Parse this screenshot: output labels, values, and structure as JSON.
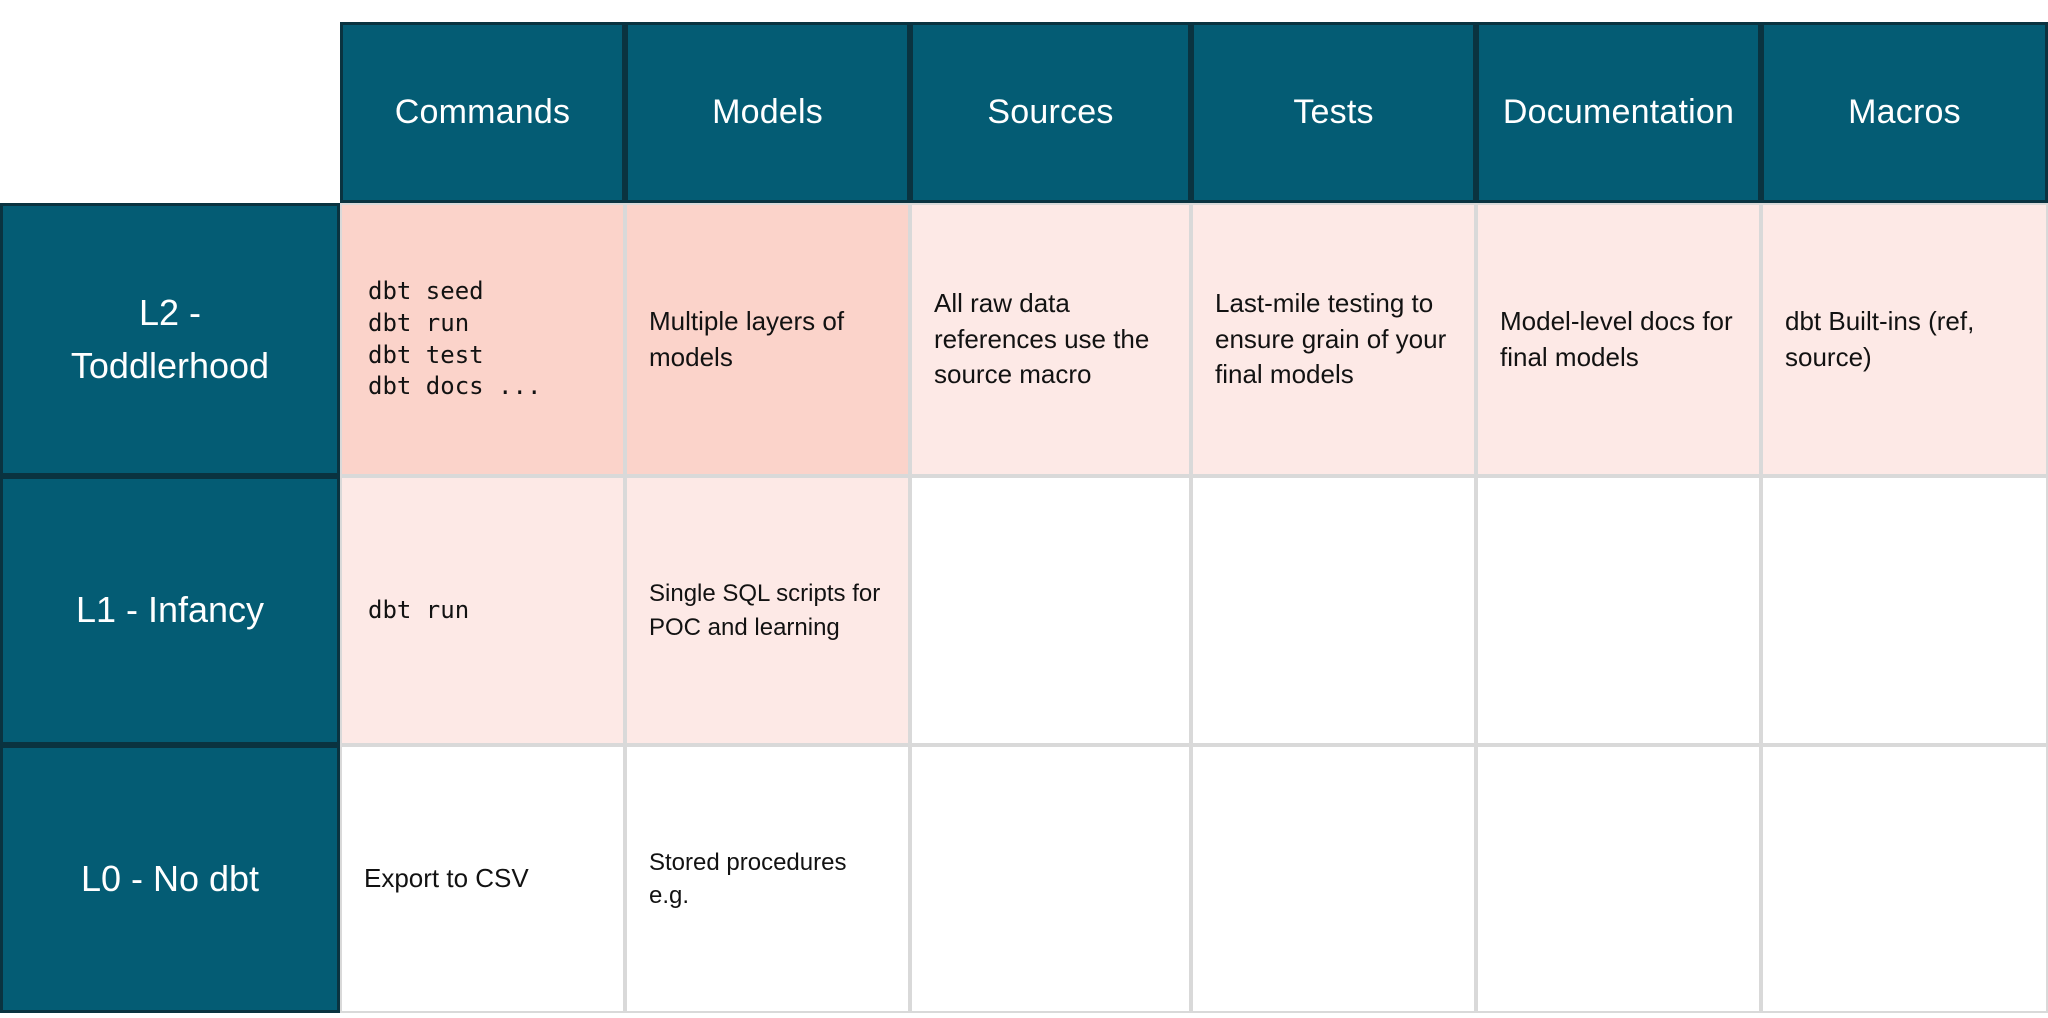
{
  "table": {
    "title": "dbt maturity levels table",
    "columns": [
      "Commands",
      "Models",
      "Sources",
      "Tests",
      "Documentation",
      "Macros"
    ],
    "rows": [
      {
        "label": "L2 - Toddlerhood",
        "cells": [
          {
            "lines": [
              "dbt seed",
              "dbt run",
              "dbt test",
              "dbt docs ..."
            ],
            "style": "mono",
            "bg": "dark-pink"
          },
          {
            "text": "Multiple layers of models",
            "bg": "dark-pink"
          },
          {
            "text": "All raw data references use the source macro",
            "bg": "light-pink"
          },
          {
            "text": "Last-mile testing to ensure grain of your final models",
            "bg": "light-pink"
          },
          {
            "text": "Model-level docs for final models",
            "bg": "light-pink"
          },
          {
            "text": "dbt Built-ins (ref, source)",
            "bg": "light-pink"
          }
        ]
      },
      {
        "label": "L1 - Infancy",
        "cells": [
          {
            "text": "dbt run",
            "style": "mono",
            "bg": "light-pink"
          },
          {
            "text": "Single SQL scripts for POC and learning",
            "bg": "light-pink"
          },
          {
            "text": "",
            "bg": "white"
          },
          {
            "text": "",
            "bg": "white"
          },
          {
            "text": "",
            "bg": "white"
          },
          {
            "text": "",
            "bg": "white"
          }
        ]
      },
      {
        "label": "L0 - No dbt",
        "cells": [
          {
            "text": "Export to CSV",
            "bg": "white"
          },
          {
            "text": "Stored procedures e.g.",
            "bg": "white"
          },
          {
            "text": "",
            "bg": "white"
          },
          {
            "text": "",
            "bg": "white"
          },
          {
            "text": "",
            "bg": "white"
          },
          {
            "text": "",
            "bg": "white"
          }
        ]
      }
    ],
    "colors": {
      "header_teal": "#045C74",
      "teal_border": "#0A3340",
      "dark_pink": "#FBD3CA",
      "light_pink": "#FDE9E6",
      "grid_gray": "#D9D9D9",
      "text_dark": "#121212",
      "text_light": "#FFFFFF"
    }
  }
}
